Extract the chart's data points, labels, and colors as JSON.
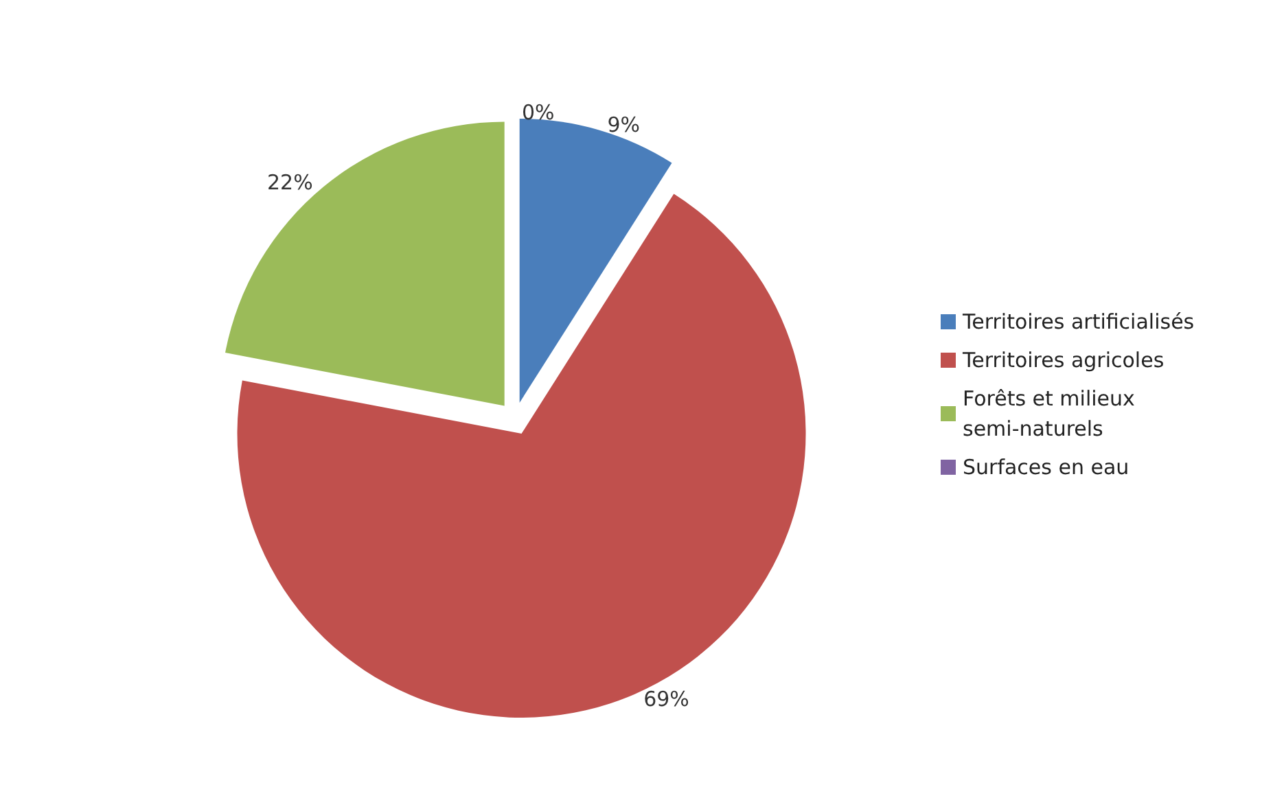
{
  "chart_data": {
    "type": "pie",
    "categories": [
      "Territoires artificialisés",
      "Territoires agricoles",
      "Forêts et milieux semi-naturels",
      "Surfaces en eau"
    ],
    "values": [
      9,
      69,
      22,
      0
    ],
    "colors": [
      "#4a7ebb",
      "#c0504d",
      "#9bbb59",
      "#8064a2"
    ],
    "value_labels": [
      "9%",
      "69%",
      "22%",
      "0%"
    ],
    "legend": "right"
  }
}
